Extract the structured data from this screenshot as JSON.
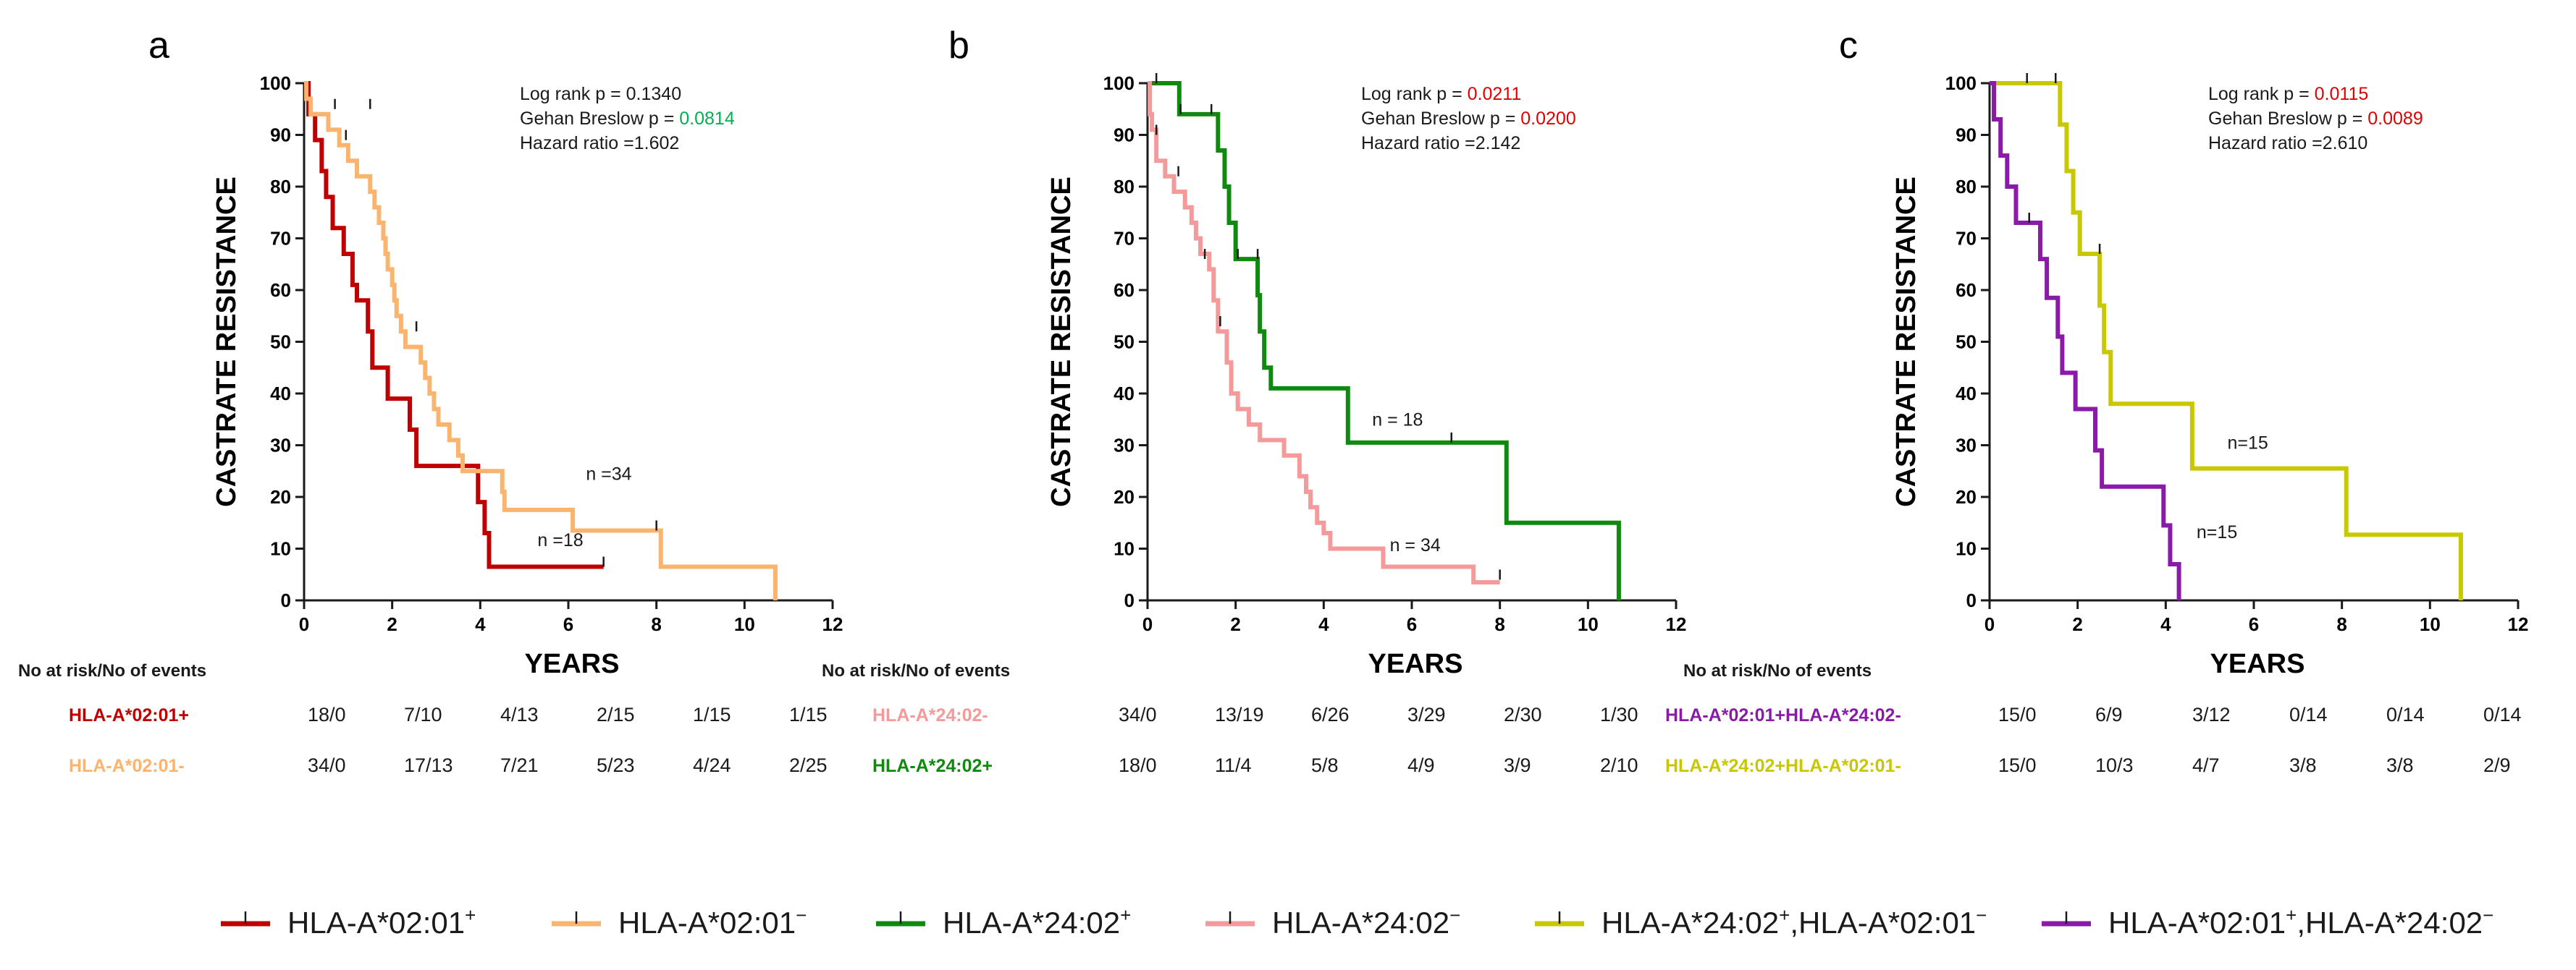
{
  "figure": {
    "risk_table_title": "No at risk/No of events",
    "ylabel": "CASTRATE RESISTANCE",
    "xlabel": "YEARS",
    "x_ticks": [
      "0",
      "2",
      "4",
      "6",
      "8",
      "10",
      "12"
    ],
    "y_ticks": [
      "0",
      "10",
      "20",
      "30",
      "40",
      "50",
      "60",
      "70",
      "80",
      "90",
      "100"
    ]
  },
  "colors": {
    "a02_pos": "#c00000",
    "a02_neg": "#fab46e",
    "a24_pos": "#0f8a0f",
    "a24_neg": "#f59a9a",
    "a24pos_a02neg": "#c8c800",
    "a02pos_a24neg": "#8a1aa8",
    "stat_green": "#00b050",
    "stat_red": "#e00000",
    "black": "#1a1a1a"
  },
  "legend": [
    {
      "key": "a02_pos",
      "text": "HLA-A*02:01",
      "sup": "+",
      "text2": "",
      "sup2": ""
    },
    {
      "key": "a02_neg",
      "text": "HLA-A*02:01",
      "sup": "−",
      "text2": "",
      "sup2": ""
    },
    {
      "key": "a24_pos",
      "text": "HLA-A*24:02",
      "sup": "+",
      "text2": "",
      "sup2": ""
    },
    {
      "key": "a24_neg",
      "text": "HLA-A*24:02",
      "sup": "−",
      "text2": "",
      "sup2": ""
    },
    {
      "key": "a24pos_a02neg",
      "text": "HLA-A*24:02",
      "sup": "+",
      "text2": ",HLA-A*02:01",
      "sup2": "−"
    },
    {
      "key": "a02pos_a24neg",
      "text": "HLA-A*02:01",
      "sup": "+",
      "text2": ",HLA-A*24:02",
      "sup2": "−"
    }
  ],
  "chart_data": [
    {
      "type": "line",
      "subtype": "kaplan-meier",
      "panel": "a",
      "xlabel": "YEARS",
      "ylabel": "CASTRATE RESISTANCE",
      "xlim": [
        0,
        12
      ],
      "ylim": [
        0,
        100
      ],
      "stats": [
        {
          "label": "Log rank p = ",
          "value": "0.1340",
          "color": "black"
        },
        {
          "label": "Gehan Breslow p = ",
          "value": "0.0814",
          "color": "stat_green"
        },
        {
          "label": "Hazard ratio =",
          "value": "1.602",
          "color": "black"
        }
      ],
      "series": [
        {
          "name": "HLA-A*02:01+",
          "color_key": "a02_pos",
          "n_label": "n =18",
          "n_at": [
            5.3,
            10.5
          ],
          "points": [
            [
              0,
              100
            ],
            [
              0.1,
              94
            ],
            [
              0.25,
              89
            ],
            [
              0.4,
              83
            ],
            [
              0.5,
              78
            ],
            [
              0.65,
              72
            ],
            [
              0.9,
              67
            ],
            [
              1.1,
              61
            ],
            [
              1.2,
              58
            ],
            [
              1.45,
              52
            ],
            [
              1.55,
              45
            ],
            [
              1.9,
              39
            ],
            [
              2.4,
              33
            ],
            [
              2.55,
              26
            ],
            [
              3.1,
              26
            ],
            [
              3.95,
              19
            ],
            [
              4.1,
              13
            ],
            [
              4.2,
              6.5
            ],
            [
              6.8,
              6.5
            ]
          ],
          "censors": [
            [
              6.8,
              6.5
            ]
          ]
        },
        {
          "name": "HLA-A*02:01-",
          "color_key": "a02_neg",
          "n_label": "n =34",
          "n_at": [
            6.4,
            23.3
          ],
          "points": [
            [
              0,
              100
            ],
            [
              0.05,
              97
            ],
            [
              0.15,
              94
            ],
            [
              0.55,
              91
            ],
            [
              0.8,
              88
            ],
            [
              1.0,
              85
            ],
            [
              1.2,
              82
            ],
            [
              1.5,
              79
            ],
            [
              1.6,
              76
            ],
            [
              1.7,
              73
            ],
            [
              1.8,
              70
            ],
            [
              1.85,
              67
            ],
            [
              1.9,
              64
            ],
            [
              2.0,
              61
            ],
            [
              2.05,
              58
            ],
            [
              2.1,
              55
            ],
            [
              2.2,
              52
            ],
            [
              2.3,
              49
            ],
            [
              2.65,
              46
            ],
            [
              2.75,
              43
            ],
            [
              2.85,
              40
            ],
            [
              2.95,
              37
            ],
            [
              3.05,
              34
            ],
            [
              3.3,
              31
            ],
            [
              3.5,
              28
            ],
            [
              3.6,
              25
            ],
            [
              4.5,
              21
            ],
            [
              4.55,
              17.5
            ],
            [
              6.0,
              17.5
            ],
            [
              6.1,
              13.5
            ],
            [
              8.0,
              13.5
            ],
            [
              8.1,
              6.5
            ],
            [
              10.7,
              6.5
            ],
            [
              10.7,
              0
            ]
          ],
          "censors": [
            [
              0.7,
              95
            ],
            [
              0.95,
              89
            ],
            [
              1.5,
              95
            ],
            [
              2.55,
              52
            ],
            [
              8.0,
              13.5
            ]
          ]
        }
      ],
      "risk_table": {
        "rows": [
          {
            "group_label": "HLA-A*02:01+",
            "color_key": "a02_pos",
            "values": [
              "18/0",
              "7/10",
              "4/13",
              "2/15",
              "1/15",
              "1/15"
            ]
          },
          {
            "group_label": "HLA-A*02:01-",
            "color_key": "a02_neg",
            "values": [
              "34/0",
              "17/13",
              "7/21",
              "5/23",
              "4/24",
              "2/25"
            ]
          }
        ]
      }
    },
    {
      "type": "line",
      "subtype": "kaplan-meier",
      "panel": "b",
      "xlabel": "YEARS",
      "ylabel": "CASTRATE RESISTANCE",
      "xlim": [
        0,
        12
      ],
      "ylim": [
        0,
        100
      ],
      "stats": [
        {
          "label": "Log rank p = ",
          "value": "0.0211",
          "color": "stat_red"
        },
        {
          "label": "Gehan Breslow p = ",
          "value": "0.0200",
          "color": "stat_red"
        },
        {
          "label": "Hazard ratio =",
          "value": "2.142",
          "color": "black"
        }
      ],
      "series": [
        {
          "name": "HLA-A*24:02+",
          "color_key": "a24_pos",
          "n_label": "n = 18",
          "n_at": [
            5.1,
            33.8
          ],
          "points": [
            [
              0,
              100
            ],
            [
              0.7,
              100
            ],
            [
              0.72,
              94
            ],
            [
              1.5,
              94
            ],
            [
              1.6,
              87
            ],
            [
              1.75,
              80
            ],
            [
              1.85,
              73
            ],
            [
              2.0,
              66
            ],
            [
              2.45,
              66
            ],
            [
              2.5,
              59
            ],
            [
              2.55,
              52
            ],
            [
              2.65,
              45
            ],
            [
              2.8,
              41
            ],
            [
              4.5,
              41
            ],
            [
              4.55,
              30.5
            ],
            [
              8.1,
              30.5
            ],
            [
              8.15,
              15
            ],
            [
              10.7,
              15
            ],
            [
              10.7,
              0
            ]
          ],
          "censors": [
            [
              0.2,
              100
            ],
            [
              0.75,
              94
            ],
            [
              1.45,
              94
            ],
            [
              2.05,
              66
            ],
            [
              2.5,
              66
            ],
            [
              6.9,
              30.5
            ]
          ]
        },
        {
          "name": "HLA-A*24:02-",
          "color_key": "a24_neg",
          "n_label": "n = 34",
          "n_at": [
            5.5,
            9.5
          ],
          "points": [
            [
              0,
              100
            ],
            [
              0.05,
              94
            ],
            [
              0.1,
              91
            ],
            [
              0.2,
              85
            ],
            [
              0.4,
              82
            ],
            [
              0.6,
              79
            ],
            [
              0.85,
              76
            ],
            [
              1.0,
              73
            ],
            [
              1.1,
              70
            ],
            [
              1.2,
              67
            ],
            [
              1.4,
              64
            ],
            [
              1.5,
              58
            ],
            [
              1.6,
              52
            ],
            [
              1.8,
              46
            ],
            [
              1.9,
              40
            ],
            [
              2.05,
              37
            ],
            [
              2.3,
              34
            ],
            [
              2.55,
              31
            ],
            [
              3.1,
              28
            ],
            [
              3.45,
              24
            ],
            [
              3.6,
              21
            ],
            [
              3.7,
              18
            ],
            [
              3.85,
              15
            ],
            [
              4.0,
              13
            ],
            [
              4.15,
              10
            ],
            [
              5.2,
              10
            ],
            [
              5.35,
              6.5
            ],
            [
              7.3,
              6.5
            ],
            [
              7.4,
              3.5
            ],
            [
              8.0,
              3.5
            ]
          ],
          "censors": [
            [
              0.2,
              90
            ],
            [
              0.7,
              82
            ],
            [
              1.3,
              66
            ],
            [
              1.65,
              53
            ],
            [
              8.0,
              4
            ]
          ]
        }
      ],
      "risk_table": {
        "rows": [
          {
            "group_label": "HLA-A*24:02-",
            "color_key": "a24_neg",
            "values": [
              "34/0",
              "13/19",
              "6/26",
              "3/29",
              "2/30",
              "1/30"
            ]
          },
          {
            "group_label": "HLA-A*24:02+",
            "color_key": "a24_pos",
            "values": [
              "18/0",
              "11/4",
              "5/8",
              "4/9",
              "3/9",
              "2/10"
            ]
          }
        ]
      }
    },
    {
      "type": "line",
      "subtype": "kaplan-meier",
      "panel": "c",
      "xlabel": "YEARS",
      "ylabel": "CASTRATE RESISTANCE",
      "xlim": [
        0,
        12
      ],
      "ylim": [
        0,
        100
      ],
      "stats": [
        {
          "label": "Log rank p = ",
          "value": "0.0115",
          "color": "stat_red"
        },
        {
          "label": "Gehan Breslow p = ",
          "value": "0.0089",
          "color": "stat_red"
        },
        {
          "label": "Hazard ratio =",
          "value": "2.610",
          "color": "black"
        }
      ],
      "series": [
        {
          "name": "HLA-A*24:02+,HLA-A*02:01-",
          "color_key": "a24pos_a02neg",
          "n_label": "n=15",
          "n_at": [
            5.4,
            29.3
          ],
          "points": [
            [
              0,
              100
            ],
            [
              1.5,
              100
            ],
            [
              1.6,
              92
            ],
            [
              1.75,
              83
            ],
            [
              1.9,
              75
            ],
            [
              2.05,
              67
            ],
            [
              2.45,
              67
            ],
            [
              2.5,
              57
            ],
            [
              2.6,
              48
            ],
            [
              2.75,
              38
            ],
            [
              4.55,
              38
            ],
            [
              4.6,
              25.5
            ],
            [
              8.05,
              25.5
            ],
            [
              8.1,
              12.7
            ],
            [
              10.7,
              12.7
            ],
            [
              10.7,
              0
            ]
          ],
          "censors": [
            [
              0.85,
              100
            ],
            [
              1.5,
              100
            ],
            [
              2.5,
              67
            ]
          ]
        },
        {
          "name": "HLA-A*02:01+,HLA-A*24:02-",
          "color_key": "a02pos_a24neg",
          "n_label": "n=15",
          "n_at": [
            4.7,
            12.0
          ],
          "points": [
            [
              0,
              100
            ],
            [
              0.1,
              93
            ],
            [
              0.25,
              86
            ],
            [
              0.4,
              80
            ],
            [
              0.6,
              73
            ],
            [
              1.05,
              73
            ],
            [
              1.15,
              66
            ],
            [
              1.3,
              58.5
            ],
            [
              1.55,
              51
            ],
            [
              1.65,
              44
            ],
            [
              1.95,
              37
            ],
            [
              2.3,
              37
            ],
            [
              2.4,
              29
            ],
            [
              2.55,
              22
            ],
            [
              3.8,
              22
            ],
            [
              3.95,
              14.5
            ],
            [
              4.1,
              7
            ],
            [
              4.3,
              0
            ]
          ],
          "censors": [
            [
              0.9,
              73
            ]
          ]
        }
      ],
      "risk_table": {
        "rows": [
          {
            "group_label": "HLA-A*02:01+HLA-A*24:02-",
            "color_key": "a02pos_a24neg",
            "values": [
              "15/0",
              "6/9",
              "3/12",
              "0/14",
              "0/14",
              "0/14"
            ]
          },
          {
            "group_label": "HLA-A*24:02+HLA-A*02:01-",
            "color_key": "a24pos_a02neg",
            "values": [
              "15/0",
              "10/3",
              "4/7",
              "3/8",
              "3/8",
              "2/9"
            ]
          }
        ]
      }
    }
  ]
}
